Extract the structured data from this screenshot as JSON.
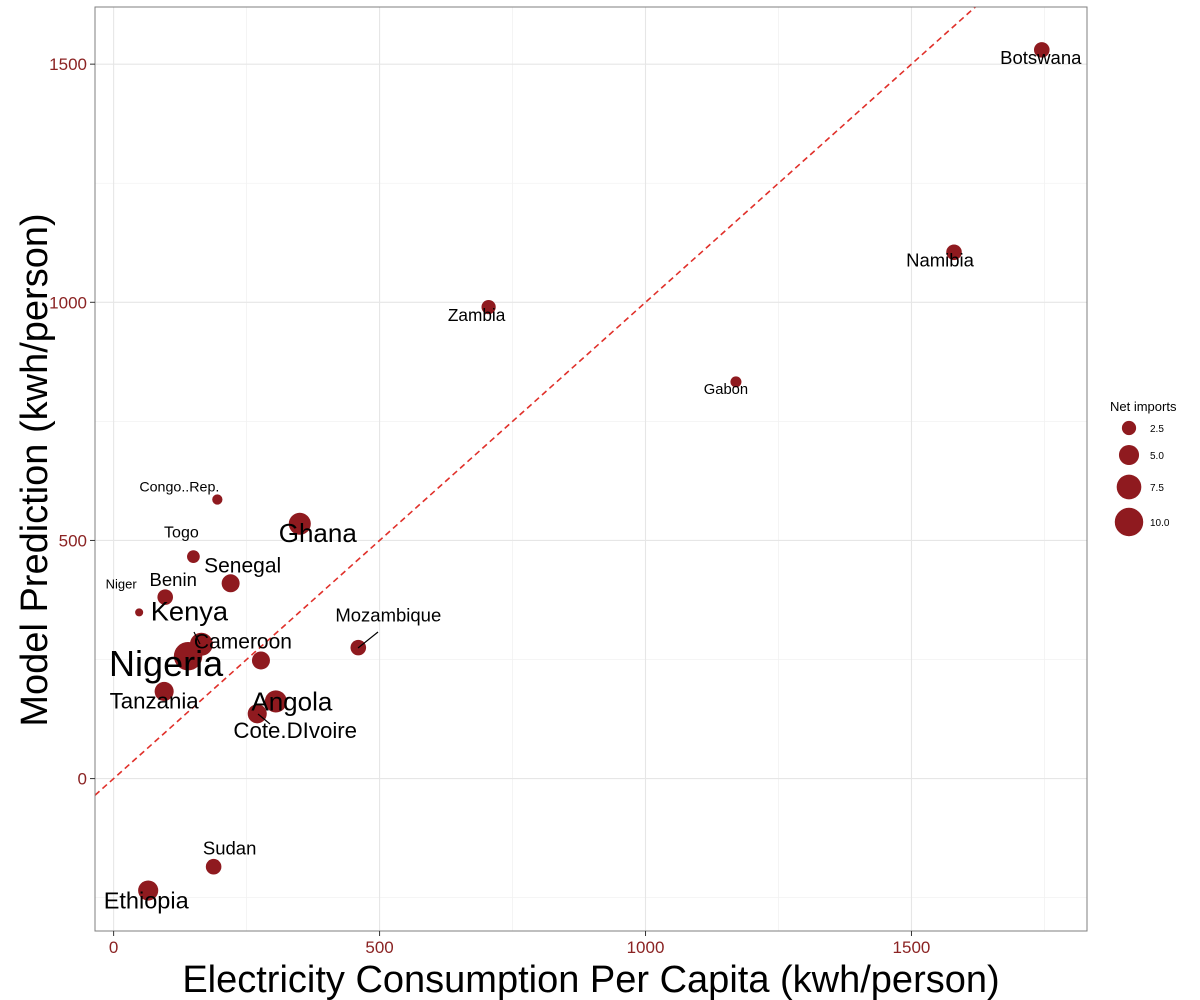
{
  "colors": {
    "point": "#8f1a1f",
    "reference_line": "#e0302a",
    "tick_label": "#8b2323"
  },
  "chart_data": {
    "type": "scatter",
    "title": "",
    "xlabel": "Electricity Consumption Per Capita (kwh/person)",
    "ylabel": "Model Prediction (kwh/person)",
    "xlim": [
      -35,
      1830
    ],
    "ylim": [
      -320,
      1620
    ],
    "x_ticks": [
      0,
      500,
      1000,
      1500
    ],
    "y_ticks": [
      0,
      500,
      1000,
      1500
    ],
    "grid": true,
    "reference_line": {
      "type": "identity",
      "style": "dashed",
      "slope": 1,
      "intercept": 0
    },
    "size_legend": {
      "title": "Net imports",
      "position": "right",
      "breaks": [
        2.5,
        5.0,
        7.5,
        10.0
      ],
      "labels": [
        "2.5",
        "5.0",
        "7.5",
        "10.0"
      ]
    },
    "points": [
      {
        "label": "Botswana",
        "x": 1745,
        "y": 1530,
        "size": 3.0
      },
      {
        "label": "Namibia",
        "x": 1580,
        "y": 1105,
        "size": 3.0
      },
      {
        "label": "Zambia",
        "x": 705,
        "y": 990,
        "size": 2.5
      },
      {
        "label": "Gabon",
        "x": 1170,
        "y": 833,
        "size": 1.5
      },
      {
        "label": "Congo..Rep.",
        "x": 195,
        "y": 586,
        "size": 1.3
      },
      {
        "label": "Ghana",
        "x": 350,
        "y": 535,
        "size": 6.0
      },
      {
        "label": "Togo",
        "x": 150,
        "y": 466,
        "size": 2.0
      },
      {
        "label": "Senegal",
        "x": 220,
        "y": 410,
        "size": 4.0
      },
      {
        "label": "Benin",
        "x": 97,
        "y": 381,
        "size": 3.0
      },
      {
        "label": "Niger",
        "x": 48,
        "y": 349,
        "size": 0.8
      },
      {
        "label": "Kenya",
        "x": 165,
        "y": 282,
        "size": 6.5
      },
      {
        "label": "Mozambique",
        "x": 460,
        "y": 275,
        "size": 3.0
      },
      {
        "label": "Nigeria",
        "x": 140,
        "y": 257,
        "size": 10.0
      },
      {
        "label": "Cameroon",
        "x": 277,
        "y": 248,
        "size": 4.0
      },
      {
        "label": "Tanzania",
        "x": 95,
        "y": 183,
        "size": 4.5
      },
      {
        "label": "Angola",
        "x": 305,
        "y": 162,
        "size": 6.0
      },
      {
        "label": "Cote.DIvoire",
        "x": 270,
        "y": 136,
        "size": 4.5
      },
      {
        "label": "Sudan",
        "x": 188,
        "y": -185,
        "size": 3.0
      },
      {
        "label": "Ethiopia",
        "x": 65,
        "y": -235,
        "size": 5.0
      }
    ]
  }
}
